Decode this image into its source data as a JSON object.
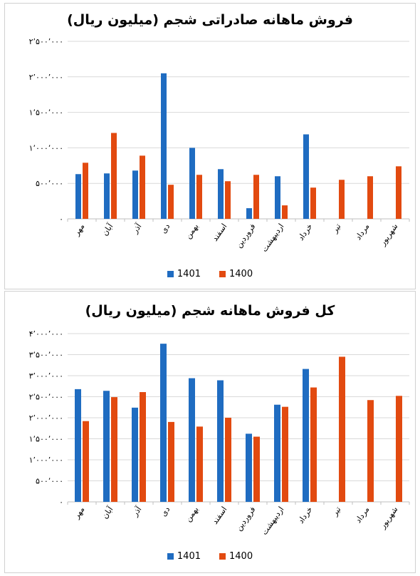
{
  "colors": {
    "series_1401": "#1f6cc1",
    "series_1400": "#e24a10",
    "gridline": "#d9d9d9",
    "axis": "#bfbfbf"
  },
  "chart_data": [
    {
      "type": "bar",
      "title": "فروش ماهانه صادراتی شجم (میلیون ریال)",
      "categories": [
        "مهر",
        "آبان",
        "آذر",
        "دی",
        "بهمن",
        "اسفند",
        "فروردین",
        "اردیبهشت",
        "خرداد",
        "تیر",
        "مرداد",
        "شهریور"
      ],
      "series": [
        {
          "name": "1401",
          "values": [
            630000,
            640000,
            680000,
            2050000,
            1000000,
            700000,
            150000,
            600000,
            1190000,
            null,
            null,
            null
          ]
        },
        {
          "name": "1400",
          "values": [
            790000,
            1210000,
            890000,
            480000,
            620000,
            530000,
            620000,
            190000,
            440000,
            550000,
            600000,
            740000
          ]
        }
      ],
      "ylim": [
        0,
        2500000
      ],
      "yticks": [
        "۲٬۵۰۰٬۰۰۰",
        "۲٬۰۰۰٬۰۰۰",
        "۱٬۵۰۰٬۰۰۰",
        "۱٬۰۰۰٬۰۰۰",
        "۵۰۰٬۰۰۰",
        "۰"
      ],
      "ytick_values": [
        2500000,
        2000000,
        1500000,
        1000000,
        500000,
        0
      ],
      "grid": true,
      "legend": "bottom-center",
      "xlabel": "",
      "ylabel": ""
    },
    {
      "type": "bar",
      "title": "کل فروش ماهانه شجم (میلیون ریال)",
      "categories": [
        "مهر",
        "آبان",
        "آذر",
        "دی",
        "بهمن",
        "اسفند",
        "فروردین",
        "اردیبهشت",
        "خرداد",
        "تیر",
        "مرداد",
        "شهریور"
      ],
      "series": [
        {
          "name": "1401",
          "values": [
            2680000,
            2640000,
            2240000,
            3760000,
            2940000,
            2890000,
            1620000,
            2310000,
            3160000,
            null,
            null,
            null
          ]
        },
        {
          "name": "1400",
          "values": [
            1920000,
            2490000,
            2610000,
            1900000,
            1790000,
            2000000,
            1550000,
            2260000,
            2720000,
            3450000,
            2420000,
            2520000
          ]
        }
      ],
      "ylim": [
        0,
        4000000
      ],
      "yticks": [
        "۴٬۰۰۰٬۰۰۰",
        "۳٬۵۰۰٬۰۰۰",
        "۳٬۰۰۰٬۰۰۰",
        "۲٬۵۰۰٬۰۰۰",
        "۲٬۰۰۰٬۰۰۰",
        "۱٬۵۰۰٬۰۰۰",
        "۱٬۰۰۰٬۰۰۰",
        "۵۰۰٬۰۰۰",
        "۰"
      ],
      "ytick_values": [
        4000000,
        3500000,
        3000000,
        2500000,
        2000000,
        1500000,
        1000000,
        500000,
        0
      ],
      "grid": true,
      "legend": "bottom-center",
      "xlabel": "",
      "ylabel": ""
    }
  ]
}
